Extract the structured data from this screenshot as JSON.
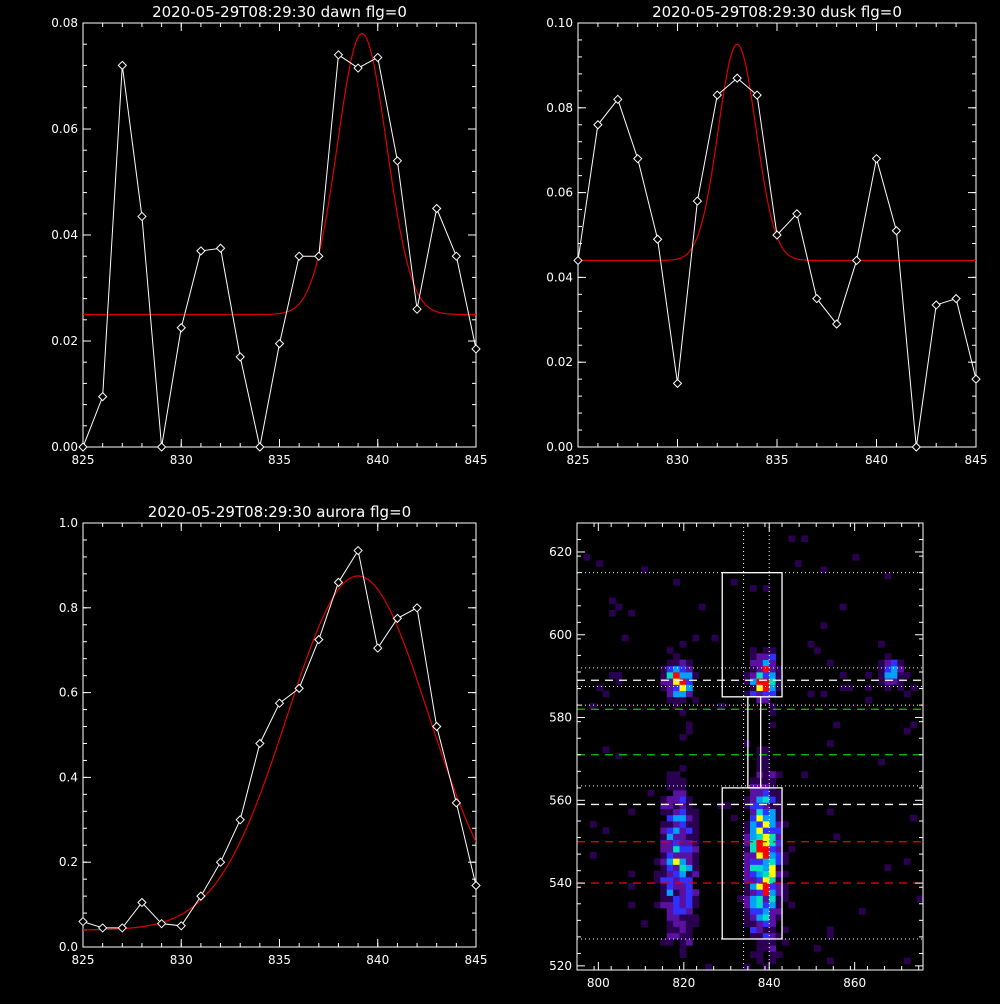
{
  "panels": [
    {
      "title": "2020-05-29T08:29:30 dawn flg=0",
      "xticks": [
        "825",
        "830",
        "835",
        "840",
        "845"
      ],
      "yticks": [
        "0.00",
        "0.02",
        "0.04",
        "0.06",
        "0.08"
      ]
    },
    {
      "title": "2020-05-29T08:29:30 dusk flg=0",
      "xticks": [
        "825",
        "830",
        "835",
        "840",
        "845"
      ],
      "yticks": [
        "0.00",
        "0.02",
        "0.04",
        "0.06",
        "0.08",
        "0.10"
      ]
    },
    {
      "title": "2020-05-29T08:29:30 aurora flg=0",
      "xticks": [
        "825",
        "830",
        "835",
        "840",
        "845"
      ],
      "yticks": [
        "0.0",
        "0.2",
        "0.4",
        "0.6",
        "0.8",
        "1.0"
      ]
    },
    {
      "title": "",
      "xticks": [
        "800",
        "820",
        "840",
        "860"
      ],
      "yticks": [
        "520",
        "540",
        "560",
        "580",
        "600",
        "620"
      ]
    }
  ],
  "colors": {
    "background": "#000000",
    "axes": "#ffffff",
    "data_line": "#ffffff",
    "fit_line": "#dd0000",
    "guide_white": "#ffffff",
    "guide_green": "#00cc00",
    "guide_red": "#dd0000",
    "heat_colormap": [
      "#000000",
      "#2a0050",
      "#5a10a0",
      "#3030ff",
      "#00a0ff",
      "#00e0c0",
      "#ffff00",
      "#ff0000"
    ]
  },
  "chart_data": [
    {
      "type": "line",
      "title": "2020-05-29T08:29:30 dawn flg=0",
      "xlim": [
        825,
        845
      ],
      "ylim": [
        0,
        0.08
      ],
      "series": [
        {
          "role": "measured",
          "marker": "diamond",
          "x": [
            825,
            826,
            827,
            828,
            829,
            830,
            831,
            832,
            833,
            834,
            835,
            836,
            837,
            838,
            839,
            840,
            841,
            842,
            843,
            844,
            845
          ],
          "y": [
            0.0,
            0.0095,
            0.072,
            0.0435,
            0.0,
            0.0225,
            0.037,
            0.0375,
            0.017,
            0.0,
            0.0195,
            0.036,
            0.036,
            0.074,
            0.0715,
            0.0735,
            0.054,
            0.026,
            0.045,
            0.036,
            0.0185
          ]
        },
        {
          "role": "gaussian-fit",
          "baseline": 0.025,
          "amplitude": 0.053,
          "center": 839.2,
          "sigma": 1.25
        }
      ]
    },
    {
      "type": "line",
      "title": "2020-05-29T08:29:30 dusk flg=0",
      "xlim": [
        825,
        845
      ],
      "ylim": [
        0,
        0.1
      ],
      "series": [
        {
          "role": "measured",
          "marker": "diamond",
          "x": [
            825,
            826,
            827,
            828,
            829,
            830,
            831,
            832,
            833,
            834,
            835,
            836,
            837,
            838,
            839,
            840,
            841,
            842,
            843,
            844,
            845
          ],
          "y": [
            0.044,
            0.076,
            0.082,
            0.068,
            0.049,
            0.015,
            0.058,
            0.083,
            0.087,
            0.083,
            0.05,
            0.055,
            0.035,
            0.029,
            0.044,
            0.068,
            0.051,
            0.0,
            0.0335,
            0.035,
            0.016
          ]
        },
        {
          "role": "gaussian-fit",
          "baseline": 0.044,
          "amplitude": 0.051,
          "center": 833.0,
          "sigma": 0.95
        }
      ]
    },
    {
      "type": "line",
      "title": "2020-05-29T08:29:30 aurora flg=0",
      "xlim": [
        825,
        845
      ],
      "ylim": [
        0,
        1.0
      ],
      "series": [
        {
          "role": "measured",
          "marker": "diamond",
          "x": [
            825,
            826,
            827,
            828,
            829,
            830,
            831,
            832,
            833,
            834,
            835,
            836,
            837,
            838,
            839,
            840,
            841,
            842,
            843,
            844,
            845
          ],
          "y": [
            0.06,
            0.045,
            0.045,
            0.105,
            0.055,
            0.05,
            0.12,
            0.2,
            0.3,
            0.48,
            0.575,
            0.61,
            0.725,
            0.86,
            0.935,
            0.705,
            0.775,
            0.8,
            0.52,
            0.34,
            0.145
          ]
        },
        {
          "role": "gaussian-fit",
          "baseline": 0.04,
          "amplitude": 0.835,
          "center": 839.0,
          "sigma": 3.6
        }
      ]
    },
    {
      "type": "heatmap",
      "xlim": [
        795,
        876
      ],
      "ylim": [
        519,
        627
      ],
      "intensity_max": 10,
      "blobs": [
        {
          "x": 818,
          "y": 588,
          "sx": 2.0,
          "sy": 3.2,
          "peak": 8.5
        },
        {
          "x": 838,
          "y": 589,
          "sx": 2.0,
          "sy": 3.6,
          "peak": 8.5
        },
        {
          "x": 868,
          "y": 590,
          "sx": 2.0,
          "sy": 2.6,
          "peak": 5.0
        },
        {
          "x": 818,
          "y": 545,
          "sx": 2.8,
          "sy": 12.0,
          "peak": 5.5
        },
        {
          "x": 838,
          "y": 545,
          "sx": 2.6,
          "sy": 13.0,
          "peak": 8.5
        }
      ],
      "guides": {
        "vertical_dotted_x": [
          834,
          840
        ],
        "horizontal_dotted_y": [
          526.5,
          563.5,
          583,
          587.5,
          592,
          615
        ],
        "white_dashed_y": [
          589,
          559
        ],
        "green_dashed_y": [
          582,
          571
        ],
        "red_dashed_y": [
          550,
          540
        ],
        "boxes": [
          {
            "x0": 829,
            "x1": 843,
            "y0": 585,
            "y1": 615
          },
          {
            "x0": 829,
            "x1": 843,
            "y0": 526.5,
            "y1": 563
          },
          {
            "x0": 835,
            "x1": 838,
            "y0": 563,
            "y1": 585
          }
        ]
      }
    }
  ]
}
